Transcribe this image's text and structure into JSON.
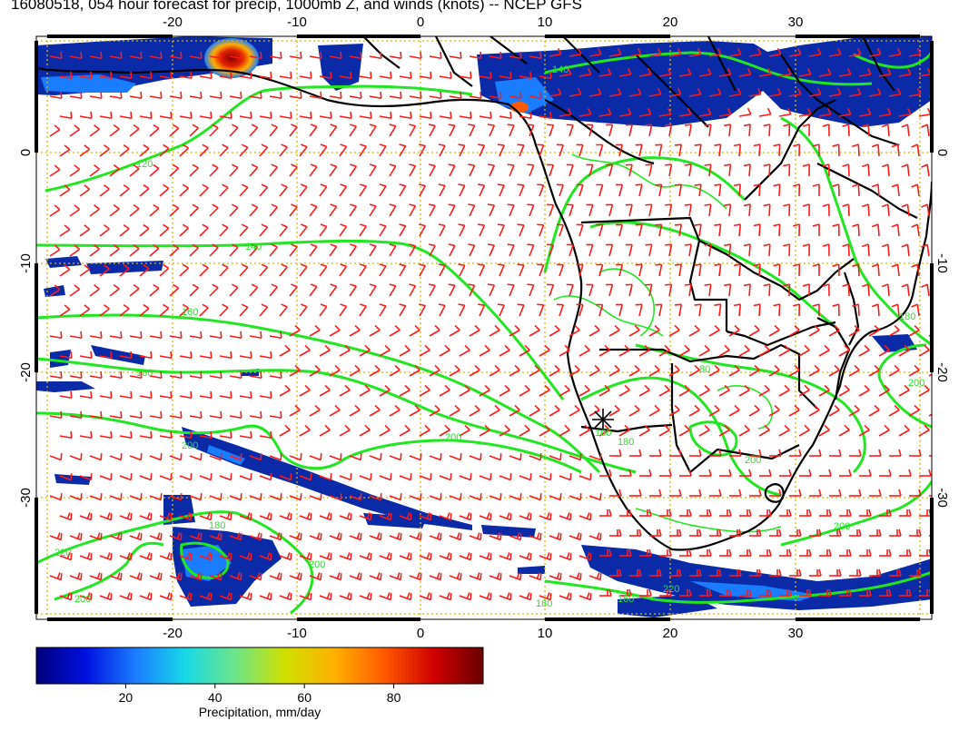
{
  "title": "16080518, 054 hour forecast for precip, 1000mb Z, and winds (knots) -- NCEP GFS",
  "map": {
    "lon_range": [
      -30,
      41
    ],
    "lat_range": [
      -40,
      10
    ],
    "lon_ticks": [
      "-20",
      "-10",
      "0",
      "10",
      "20",
      "30"
    ],
    "lat_ticks": [
      "0",
      "-10",
      "-20",
      "-30"
    ],
    "land_color": "#ffffff",
    "coast_color": "#000000",
    "grid_color": "#d9b800",
    "contour_color": "#22e622",
    "barb_color": "#ff1a1a"
  },
  "contour_labels": [
    "120",
    "140",
    "160",
    "180",
    "200",
    "220",
    "200",
    "180",
    "160",
    "200",
    "200",
    "180",
    "200",
    "200",
    "220",
    "180",
    "200",
    "160",
    "180",
    "80",
    "140"
  ],
  "colorbar": {
    "label": "Precipitation, mm/day",
    "ticks": [
      "20",
      "40",
      "60",
      "80"
    ],
    "range": [
      0,
      100
    ],
    "colors": [
      "#00007a",
      "#0010e0",
      "#1a7cff",
      "#17d9e8",
      "#6be58a",
      "#cfe000",
      "#ffb000",
      "#ff5a00",
      "#d10000",
      "#6a0000"
    ]
  }
}
